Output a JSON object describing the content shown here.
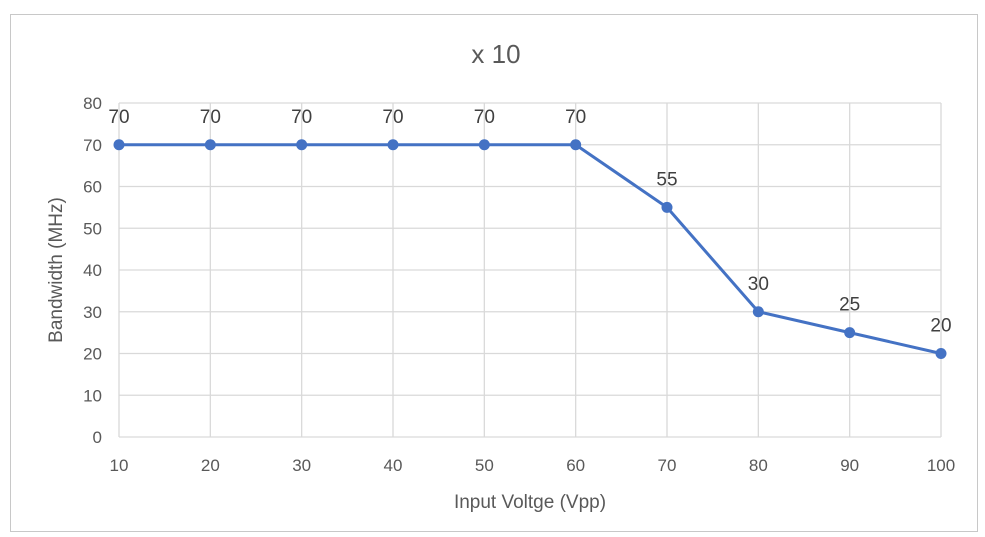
{
  "chart_data": {
    "type": "line",
    "title": "x 10",
    "xlabel": "Input Voltge (Vpp)",
    "ylabel": "Bandwidth (MHz)",
    "x": [
      10,
      20,
      30,
      40,
      50,
      60,
      70,
      80,
      90,
      100
    ],
    "series": [
      {
        "values": [
          70,
          70,
          70,
          70,
          70,
          70,
          55,
          30,
          25,
          20
        ]
      }
    ],
    "ylim": [
      0,
      80
    ],
    "yticks": [
      0,
      10,
      20,
      30,
      40,
      50,
      60,
      70,
      80
    ],
    "xticks": [
      10,
      20,
      30,
      40,
      50,
      60,
      70,
      80,
      90,
      100
    ],
    "grid": true,
    "data_labels": true,
    "colors": {
      "line": "#4472c4",
      "grid": "#d9d9d9",
      "tick_text": "#595959",
      "data_label": "#404040"
    }
  }
}
